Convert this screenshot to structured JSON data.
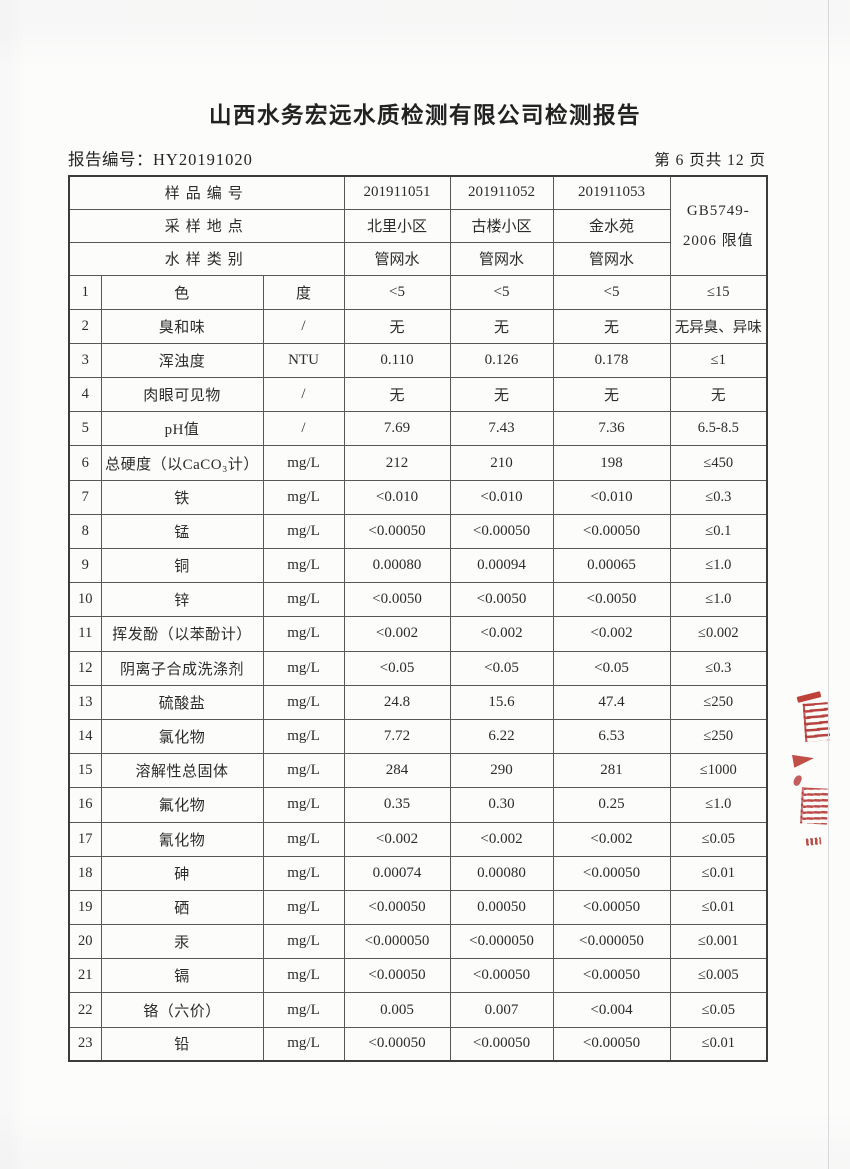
{
  "page": {
    "title": "山西水务宏远水质检测有限公司检测报告",
    "report_no_label": "报告编号：",
    "report_no": "HY20191020",
    "page_info": "第 6 页共 12 页"
  },
  "table": {
    "header": {
      "sample_no_label": "样品编号",
      "sample_nos": [
        "201911051",
        "201911052",
        "201911053"
      ],
      "location_label": "采样地点",
      "locations": [
        "北里小区",
        "古楼小区",
        "金水苑"
      ],
      "type_label": "水样类别",
      "types": [
        "管网水",
        "管网水",
        "管网水"
      ],
      "limit_header_line1": "GB5749-",
      "limit_header_line2": "2006 限值"
    },
    "rows": [
      {
        "no": "1",
        "name": "色",
        "unit": "度",
        "v1": "<5",
        "v2": "<5",
        "v3": "<5",
        "limit": "≤15"
      },
      {
        "no": "2",
        "name": "臭和味",
        "unit": "/",
        "v1": "无",
        "v2": "无",
        "v3": "无",
        "limit": "无异臭、异味"
      },
      {
        "no": "3",
        "name": "浑浊度",
        "unit": "NTU",
        "v1": "0.110",
        "v2": "0.126",
        "v3": "0.178",
        "limit": "≤1"
      },
      {
        "no": "4",
        "name": "肉眼可见物",
        "unit": "/",
        "v1": "无",
        "v2": "无",
        "v3": "无",
        "limit": "无"
      },
      {
        "no": "5",
        "name": "pH值",
        "unit": "/",
        "v1": "7.69",
        "v2": "7.43",
        "v3": "7.36",
        "limit": "6.5-8.5"
      },
      {
        "no": "6",
        "name": "总硬度（以CaCO₃计）",
        "unit": "mg/L",
        "v1": "212",
        "v2": "210",
        "v3": "198",
        "limit": "≤450"
      },
      {
        "no": "7",
        "name": "铁",
        "unit": "mg/L",
        "v1": "<0.010",
        "v2": "<0.010",
        "v3": "<0.010",
        "limit": "≤0.3"
      },
      {
        "no": "8",
        "name": "锰",
        "unit": "mg/L",
        "v1": "<0.00050",
        "v2": "<0.00050",
        "v3": "<0.00050",
        "limit": "≤0.1"
      },
      {
        "no": "9",
        "name": "铜",
        "unit": "mg/L",
        "v1": "0.00080",
        "v2": "0.00094",
        "v3": "0.00065",
        "limit": "≤1.0"
      },
      {
        "no": "10",
        "name": "锌",
        "unit": "mg/L",
        "v1": "<0.0050",
        "v2": "<0.0050",
        "v3": "<0.0050",
        "limit": "≤1.0"
      },
      {
        "no": "11",
        "name": "挥发酚（以苯酚计）",
        "unit": "mg/L",
        "v1": "<0.002",
        "v2": "<0.002",
        "v3": "<0.002",
        "limit": "≤0.002"
      },
      {
        "no": "12",
        "name": "阴离子合成洗涤剂",
        "unit": "mg/L",
        "v1": "<0.05",
        "v2": "<0.05",
        "v3": "<0.05",
        "limit": "≤0.3"
      },
      {
        "no": "13",
        "name": "硫酸盐",
        "unit": "mg/L",
        "v1": "24.8",
        "v2": "15.6",
        "v3": "47.4",
        "limit": "≤250"
      },
      {
        "no": "14",
        "name": "氯化物",
        "unit": "mg/L",
        "v1": "7.72",
        "v2": "6.22",
        "v3": "6.53",
        "limit": "≤250"
      },
      {
        "no": "15",
        "name": "溶解性总固体",
        "unit": "mg/L",
        "v1": "284",
        "v2": "290",
        "v3": "281",
        "limit": "≤1000"
      },
      {
        "no": "16",
        "name": "氟化物",
        "unit": "mg/L",
        "v1": "0.35",
        "v2": "0.30",
        "v3": "0.25",
        "limit": "≤1.0"
      },
      {
        "no": "17",
        "name": "氰化物",
        "unit": "mg/L",
        "v1": "<0.002",
        "v2": "<0.002",
        "v3": "<0.002",
        "limit": "≤0.05"
      },
      {
        "no": "18",
        "name": "砷",
        "unit": "mg/L",
        "v1": "0.00074",
        "v2": "0.00080",
        "v3": "<0.00050",
        "limit": "≤0.01"
      },
      {
        "no": "19",
        "name": "硒",
        "unit": "mg/L",
        "v1": "<0.00050",
        "v2": "0.00050",
        "v3": "<0.00050",
        "limit": "≤0.01"
      },
      {
        "no": "20",
        "name": "汞",
        "unit": "mg/L",
        "v1": "<0.000050",
        "v2": "<0.000050",
        "v3": "<0.000050",
        "limit": "≤0.001"
      },
      {
        "no": "21",
        "name": "镉",
        "unit": "mg/L",
        "v1": "<0.00050",
        "v2": "<0.00050",
        "v3": "<0.00050",
        "limit": "≤0.005"
      },
      {
        "no": "22",
        "name": "铬（六价）",
        "unit": "mg/L",
        "v1": "0.005",
        "v2": "0.007",
        "v3": "<0.004",
        "limit": "≤0.05"
      },
      {
        "no": "23",
        "name": "铅",
        "unit": "mg/L",
        "v1": "<0.00050",
        "v2": "<0.00050",
        "v3": "<0.00050",
        "limit": "≤0.01"
      }
    ]
  },
  "stamp": {
    "color": "#b5281d",
    "description": "partial red seal fragment at right page edge"
  }
}
